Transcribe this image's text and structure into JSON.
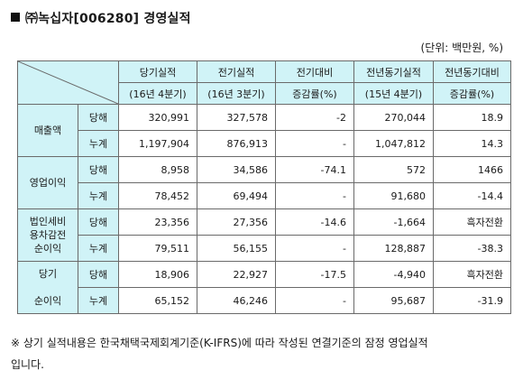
{
  "title": "㈜녹십자[006280] 경영실적",
  "unit": "(단위: 백만원, %)",
  "columns": [
    {
      "line1": "당기실적",
      "line2": "(16년 4분기)"
    },
    {
      "line1": "전기실적",
      "line2": "(16년 3분기)"
    },
    {
      "line1": "전기대비",
      "line2": "증감률(%)"
    },
    {
      "line1": "전년동기실적",
      "line2": "(15년 4분기)"
    },
    {
      "line1": "전년동기대비",
      "line2": "증감률(%)"
    }
  ],
  "groups": [
    {
      "label": "매출액",
      "rows": [
        {
          "type": "당해",
          "values": [
            "320,991",
            "327,578",
            "-2",
            "270,044",
            "18.9"
          ]
        },
        {
          "type": "누계",
          "values": [
            "1,197,904",
            "876,913",
            "-",
            "1,047,812",
            "14.3"
          ]
        }
      ]
    },
    {
      "label": "영업이익",
      "rows": [
        {
          "type": "당해",
          "values": [
            "8,958",
            "34,586",
            "-74.1",
            "572",
            "1466"
          ]
        },
        {
          "type": "누계",
          "values": [
            "78,452",
            "69,494",
            "-",
            "91,680",
            "-14.4"
          ]
        }
      ]
    },
    {
      "label": "법인세비\n용차감전\n순이익",
      "rows": [
        {
          "type": "당해",
          "values": [
            "23,356",
            "27,356",
            "-14.6",
            "-1,664",
            "흑자전환"
          ]
        },
        {
          "type": "누계",
          "values": [
            "79,511",
            "56,155",
            "-",
            "128,887",
            "-38.3"
          ]
        }
      ]
    },
    {
      "label": "당기\n\n순이익",
      "rows": [
        {
          "type": "당해",
          "values": [
            "18,906",
            "22,927",
            "-17.5",
            "-4,940",
            "흑자전환"
          ]
        },
        {
          "type": "누계",
          "values": [
            "65,152",
            "46,246",
            "-",
            "95,687",
            "-31.9"
          ]
        }
      ]
    }
  ],
  "note_line1": "※ 상기 실적내용은 한국채택국제회계기준(K-IFRS)에 따라 작성된 연결기준의 잠정 영업실적",
  "note_line2": "입니다."
}
